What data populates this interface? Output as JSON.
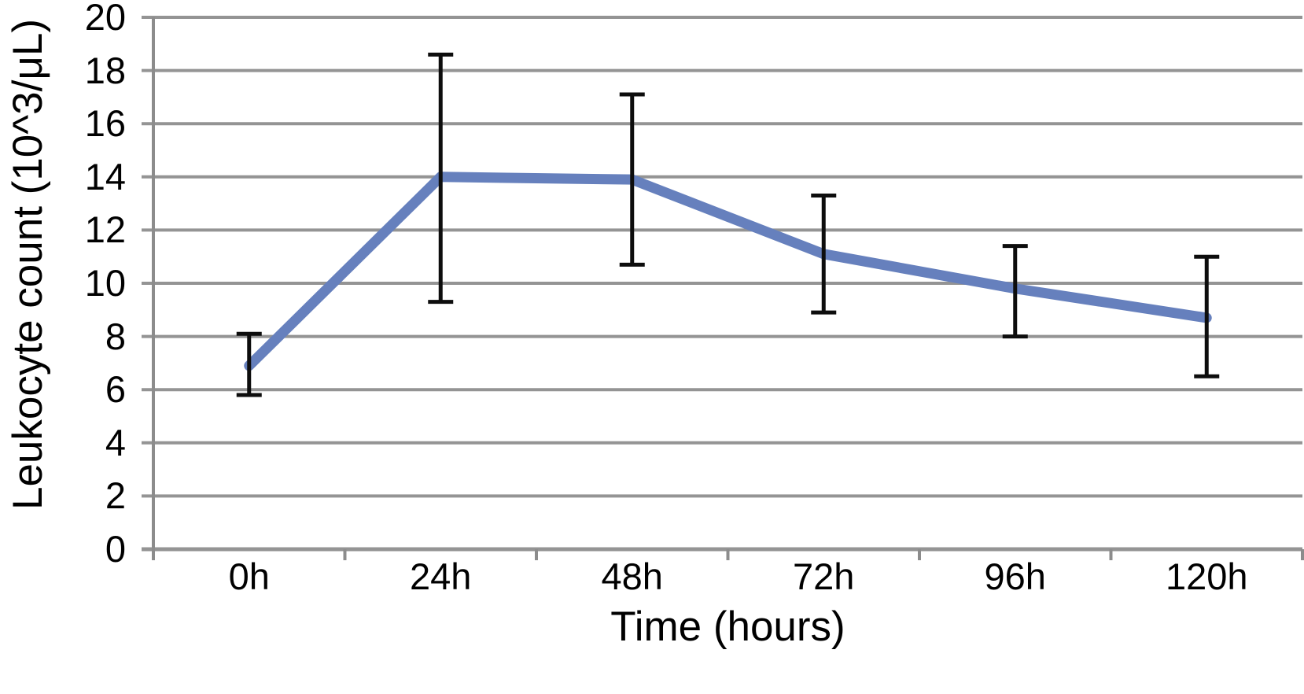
{
  "chart_data": {
    "type": "line",
    "categories": [
      "0h",
      "24h",
      "48h",
      "72h",
      "96h",
      "120h"
    ],
    "series": [
      {
        "name": "Leukocyte count",
        "values": [
          6.9,
          14.0,
          13.9,
          11.1,
          9.8,
          8.7
        ],
        "error_upper": [
          8.1,
          18.6,
          17.1,
          13.3,
          11.4,
          11.0
        ],
        "error_lower": [
          5.8,
          9.3,
          10.7,
          8.9,
          8.0,
          6.5
        ],
        "color": "#6680BD"
      }
    ],
    "title": "",
    "xlabel": "Time (hours)",
    "ylabel": "Leukocyte count (10^3/μL)",
    "ylim": [
      0,
      20
    ],
    "y_tick_step": 2,
    "y_tick_labels": [
      "0",
      "2",
      "4",
      "6",
      "8",
      "10",
      "12",
      "14",
      "16",
      "18",
      "20"
    ],
    "grid": true,
    "legend": "none",
    "colors": {
      "line": "#6680BD",
      "gridline": "#949494",
      "axis": "#8C8C8C",
      "error_bar": "#0D0D0D",
      "background": "#FFFFFF",
      "text": "#000000"
    }
  }
}
